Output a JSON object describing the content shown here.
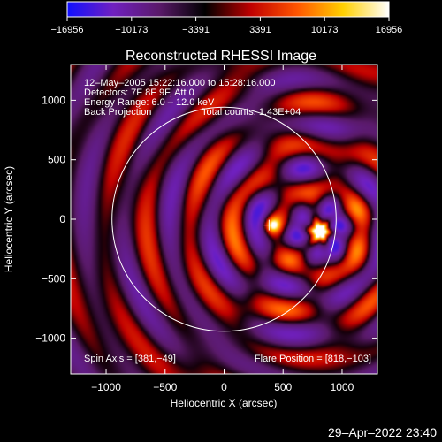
{
  "chart_data": {
    "type": "heatmap",
    "title": "Reconstructed RHESSI Image",
    "xlabel": "Heliocentric X (arcsec)",
    "ylabel": "Heliocentric Y (arcsec)",
    "xlim": [
      -1300,
      1300
    ],
    "ylim": [
      -1300,
      1300
    ],
    "xticks": [
      -1000,
      -500,
      0,
      500,
      1000
    ],
    "xtick_labels": [
      "−1000",
      "−500",
      "0",
      "500",
      "1000"
    ],
    "yticks": [
      -1000,
      -500,
      0,
      500,
      1000
    ],
    "ytick_labels": [
      "−1000",
      "−500",
      "0",
      "500",
      "1000"
    ],
    "colorbar": {
      "min": -16956,
      "max": 16956,
      "ticks": [
        -16956,
        -10173,
        -3391,
        3391,
        10173,
        16956
      ],
      "tick_labels": [
        "−16956",
        "−10173",
        "−3391",
        "3391",
        "10173",
        "16956"
      ],
      "colors": [
        "#1010ff",
        "#7020c0",
        "#5a1a6a",
        "#000000",
        "#c00000",
        "#ff5500",
        "#ffd000",
        "#ffffff"
      ]
    },
    "solar_disk_radius": 950,
    "sources": [
      {
        "x": 818,
        "y": -103,
        "peak": 16956
      },
      {
        "x": 410,
        "y": -50,
        "peak": 11000
      }
    ],
    "annotations": {
      "time_range": "12–May–2005 15:22:16.000 to 15:28:16.000",
      "detectors": "Detectors: 7F 8F 9F, Att 0",
      "energy_range": "Energy Range: 6.0 – 12.0 keV",
      "method": "Back Projection",
      "total_counts": "Total counts: 1.43E+04",
      "spin_axis": "Spin Axis = [381,−49]",
      "flare_position": "Flare Position = [818,−103]"
    },
    "marker": {
      "x": 381,
      "y": -49
    }
  },
  "footer": {
    "timestamp": "29–Apr–2022 23:40"
  }
}
